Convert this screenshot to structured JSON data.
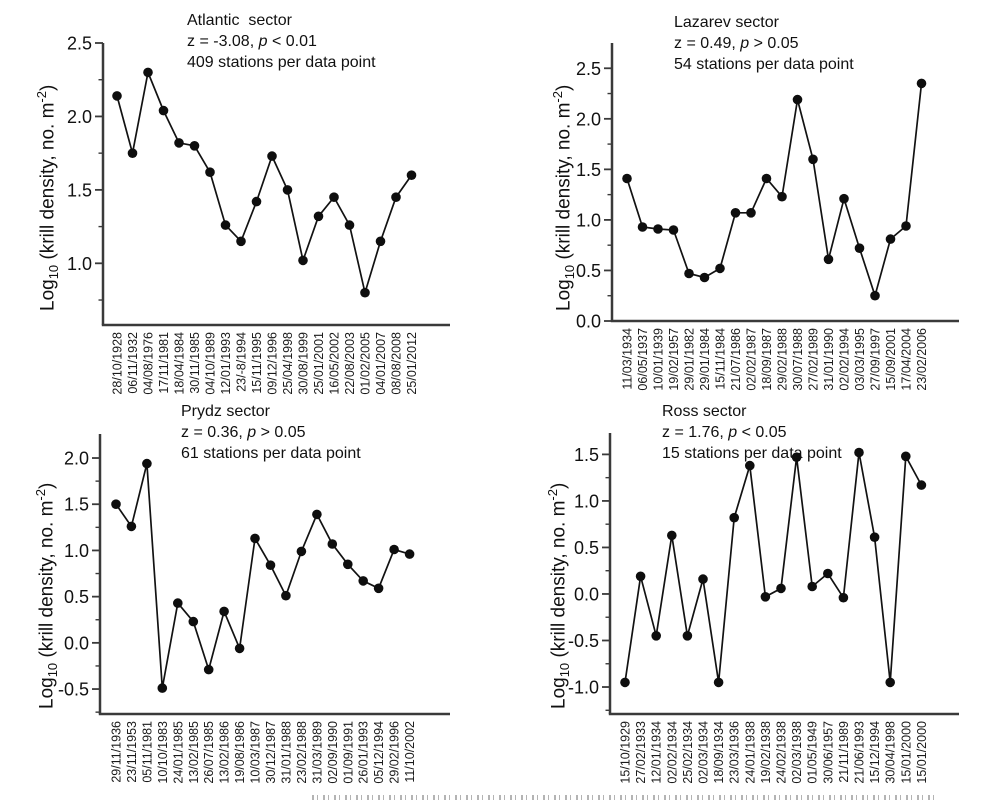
{
  "figure": {
    "background": "#ffffff",
    "text_color": "#111111",
    "line_color": "#121212",
    "ylabel": {
      "pre": "Log",
      "sub": "10",
      "mid": " (krill density, no. m",
      "sup": "-2",
      "post": ")"
    }
  },
  "chart_data": [
    {
      "type": "line",
      "title": "Atlantic  sector",
      "stats": {
        "z": "z = -3.08, ",
        "p": "p",
        "rest": " < 0.01"
      },
      "stations": "409 stations per data point",
      "xlabel": "",
      "ylabel": "Log10 (krill density, no. m-2)",
      "legend": "none",
      "grid": false,
      "marker": "filled-circle",
      "categories": [
        "28/10/1928",
        "06/11/1932",
        "04/08/1976",
        "17/11/1981",
        "18/04/1984",
        "30/11/1985",
        "04/10/1989",
        "12/01/1993",
        "23/-8/1994",
        "15/11/1995",
        "09/12/1996",
        "25/04/1998",
        "30/08/1999",
        "25/01/2001",
        "16/05/2002",
        "22/08/2003",
        "01/02/2005",
        "04/01/2007",
        "08/08/2008",
        "25/01/2012"
      ],
      "values": [
        2.14,
        1.75,
        2.3,
        2.04,
        1.82,
        1.8,
        1.62,
        1.26,
        1.15,
        1.42,
        1.73,
        1.5,
        1.02,
        1.32,
        1.45,
        1.26,
        0.8,
        1.15,
        1.45,
        1.6
      ],
      "ylim": [
        0.58,
        2.5
      ],
      "ytick_values": [
        1.0,
        1.5,
        2.0,
        2.5
      ],
      "ytick_labels": [
        "1.0",
        "1.5",
        "2.0",
        "2.5"
      ],
      "y_minor_tick_step": 0.25
    },
    {
      "type": "line",
      "title": "Lazarev sector",
      "stats": {
        "z": "z = 0.49, ",
        "p": "p",
        "rest": " > 0.05"
      },
      "stations": "54 stations per data point",
      "xlabel": "",
      "ylabel": "Log10 (krill density, no. m-2)",
      "legend": "none",
      "grid": false,
      "marker": "filled-circle",
      "categories": [
        "11/03/1934",
        "06/05/1937",
        "10/01/1939",
        "19/02/1957",
        "29/01/1982",
        "29/01/1984",
        "15/11/1984",
        "21/07/1986",
        "02/02/1987",
        "18/09/1987",
        "29/02/1988",
        "30/07/1988",
        "27/02/1989",
        "31/01/1990",
        "02/02/1994",
        "03/03/1995",
        "27/09/1997",
        "15/09/2001",
        "17/04/2004",
        "23/02/2006"
      ],
      "values": [
        1.41,
        0.93,
        0.91,
        0.9,
        0.47,
        0.43,
        0.52,
        1.07,
        1.07,
        1.41,
        1.23,
        2.19,
        1.6,
        0.61,
        1.21,
        0.72,
        0.25,
        0.81,
        0.94,
        2.35
      ],
      "ylim": [
        0.0,
        2.75
      ],
      "ytick_values": [
        0.0,
        0.5,
        1.0,
        1.5,
        2.0,
        2.5
      ],
      "ytick_labels": [
        "0.0",
        "0.5",
        "1.0",
        "1.5",
        "2.0",
        "2.5"
      ],
      "y_minor_tick_step": 0.25
    },
    {
      "type": "line",
      "title": "Prydz sector",
      "stats": {
        "z": "z = 0.36, ",
        "p": "p",
        "rest": " > 0.05"
      },
      "stations": "61 stations per data point",
      "xlabel": "",
      "ylabel": "Log10 (krill density, no. m-2)",
      "legend": "none",
      "grid": false,
      "marker": "filled-circle",
      "categories": [
        "29/11/1936",
        "23/11/1953",
        "05/11/1981",
        "10/10/1983",
        "24/01/1985",
        "13/02/1985",
        "26/07/1985",
        "13/02/1986",
        "19/08/1986",
        "10/03/1987",
        "30/12/1987",
        "31/01/1988",
        "23/02/1988",
        "31/03/1989",
        "02/09/1990",
        "01/09/1991",
        "26/01/1993",
        "05/12/1994",
        "29/02/1996",
        "11/10/2002"
      ],
      "values": [
        1.5,
        1.26,
        1.94,
        -0.49,
        0.43,
        0.23,
        -0.29,
        0.34,
        -0.06,
        1.13,
        0.84,
        0.51,
        0.99,
        1.39,
        1.07,
        0.85,
        0.67,
        0.59,
        1.01,
        0.96
      ],
      "ylim": [
        -0.77,
        2.26
      ],
      "ytick_values": [
        -0.5,
        0.0,
        0.5,
        1.0,
        1.5,
        2.0
      ],
      "ytick_labels": [
        "-0.5",
        "0.0",
        "0.5",
        "1.0",
        "1.5",
        "2.0"
      ],
      "y_minor_tick_step": 0.25
    },
    {
      "type": "line",
      "title": "Ross sector",
      "stats": {
        "z": "z = 1.76, ",
        "p": "p",
        "rest": " < 0.05"
      },
      "stations": "15 stations per data point",
      "xlabel": "",
      "ylabel": "Log10 (krill density, no. m-2)",
      "legend": "none",
      "grid": false,
      "marker": "filled-circle",
      "categories": [
        "15/10/1929",
        "27/02/1933",
        "12/01/1934",
        "02/02/1934",
        "25/02/1934",
        "02/03/1934",
        "18/09/1934",
        "23/03/1936",
        "24/01/1938",
        "19/02/1938",
        "24/02/1938",
        "02/03/1938",
        "01/05/1949",
        "30/06/1957",
        "21/11/1989",
        "21/06/1993",
        "15/12/1994",
        "30/04/1998",
        "15/01/2000",
        "15/01/2000"
      ],
      "values": [
        -0.95,
        0.19,
        -0.45,
        0.63,
        -0.45,
        0.16,
        -0.95,
        0.82,
        1.38,
        -0.03,
        0.06,
        1.47,
        0.08,
        0.22,
        -0.04,
        1.52,
        0.61,
        -0.95,
        1.48,
        1.17
      ],
      "ylim": [
        -1.29,
        1.73
      ],
      "ytick_values": [
        -1.0,
        -0.5,
        0.0,
        0.5,
        1.0,
        1.5
      ],
      "ytick_labels": [
        "-1.0",
        "-0.5",
        "0.0",
        "0.5",
        "1.0",
        "1.5"
      ],
      "y_minor_tick_step": 0.25
    }
  ]
}
